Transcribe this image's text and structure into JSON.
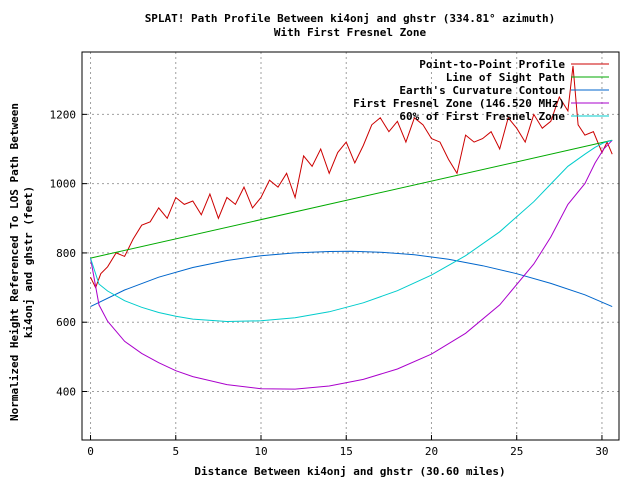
{
  "chart_data": {
    "type": "line",
    "title": "SPLAT! Path Profile Between ki4onj and ghstr (334.81° azimuth)",
    "subtitle": "With First Fresnel Zone",
    "xlabel": "Distance Between ki4onj and ghstr (30.60 miles)",
    "ylabel_line1": "Normalized Height Referenced To LOS Path Between",
    "ylabel_line2": "ki4onj and ghstr (feet)",
    "xlim": [
      -0.5,
      31.0
    ],
    "ylim": [
      260,
      1380
    ],
    "x_ticks": [
      0,
      5,
      10,
      15,
      20,
      25,
      30
    ],
    "x_tick_labels": [
      "0",
      "5",
      "10",
      "15",
      "20",
      "25",
      "30"
    ],
    "y_ticks": [
      400,
      600,
      800,
      1000,
      1200
    ],
    "y_tick_labels": [
      "400",
      "600",
      "800",
      "1000",
      "1200"
    ],
    "grid": true,
    "legend_position": "top-right",
    "series": [
      {
        "name": "Point-to-Point Profile",
        "color": "#cc0000",
        "x": [
          0,
          0.3,
          0.6,
          1.0,
          1.5,
          2.0,
          2.5,
          3.0,
          3.5,
          4.0,
          4.5,
          5.0,
          5.5,
          6.0,
          6.5,
          7.0,
          7.5,
          8.0,
          8.5,
          9.0,
          9.5,
          10.0,
          10.5,
          11.0,
          11.5,
          12.0,
          12.5,
          13.0,
          13.5,
          14.0,
          14.5,
          15.0,
          15.5,
          16.0,
          16.5,
          17.0,
          17.5,
          18.0,
          18.5,
          19.0,
          19.5,
          20.0,
          20.5,
          21.0,
          21.5,
          22.0,
          22.5,
          23.0,
          23.5,
          24.0,
          24.5,
          25.0,
          25.5,
          26.0,
          26.5,
          27.0,
          27.5,
          28.0,
          28.3,
          28.6,
          29.0,
          29.5,
          30.0,
          30.3,
          30.6
        ],
        "y": [
          730,
          700,
          740,
          760,
          800,
          790,
          840,
          880,
          890,
          930,
          900,
          960,
          940,
          950,
          910,
          970,
          900,
          960,
          940,
          990,
          930,
          960,
          1010,
          990,
          1030,
          960,
          1080,
          1050,
          1100,
          1030,
          1090,
          1120,
          1060,
          1110,
          1170,
          1190,
          1150,
          1180,
          1120,
          1190,
          1170,
          1130,
          1120,
          1070,
          1030,
          1140,
          1120,
          1130,
          1150,
          1100,
          1190,
          1160,
          1120,
          1200,
          1160,
          1180,
          1250,
          1210,
          1340,
          1170,
          1140,
          1150,
          1090,
          1120,
          1085
        ]
      },
      {
        "name": "Line of Sight Path",
        "color": "#00aa00",
        "x": [
          0,
          30.6
        ],
        "y": [
          785,
          1125
        ]
      },
      {
        "name": "Earth's Curvature Contour",
        "color": "#0066cc",
        "x": [
          0,
          2,
          4,
          6,
          8,
          10,
          12,
          14,
          15.3,
          17,
          19,
          21,
          23,
          25,
          27,
          29,
          30.6
        ],
        "y": [
          645,
          693,
          730,
          758,
          778,
          792,
          800,
          804,
          805,
          802,
          795,
          782,
          763,
          740,
          712,
          679,
          645
        ]
      },
      {
        "name": "First Fresnel Zone (146.520 MHz)",
        "color": "#aa00cc",
        "x": [
          0,
          0.5,
          1,
          2,
          3,
          4,
          5,
          6,
          8,
          10,
          12,
          14,
          16,
          18,
          20,
          22,
          24,
          26,
          27,
          28,
          29,
          29.6,
          30.1,
          30.6
        ],
        "y": [
          785,
          650,
          603,
          545,
          510,
          483,
          460,
          443,
          420,
          408,
          407,
          416,
          435,
          465,
          508,
          568,
          650,
          768,
          846,
          940,
          1000,
          1060,
          1100,
          1125
        ]
      },
      {
        "name": "60% of First Fresnel Zone",
        "color": "#00cccc",
        "x": [
          0,
          0.5,
          1,
          2,
          3,
          4,
          5,
          6,
          8,
          10,
          12,
          14,
          16,
          18,
          20,
          22,
          24,
          26,
          27,
          28,
          29,
          29.6,
          30.1,
          30.6
        ],
        "y": [
          785,
          710,
          690,
          662,
          643,
          628,
          617,
          609,
          602,
          604,
          613,
          630,
          656,
          691,
          736,
          792,
          861,
          948,
          999,
          1050,
          1085,
          1105,
          1118,
          1125
        ]
      }
    ]
  }
}
